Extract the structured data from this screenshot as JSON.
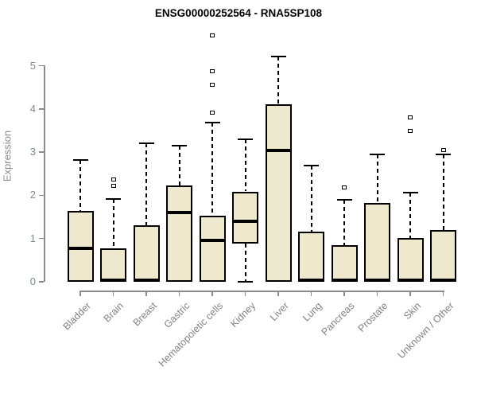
{
  "colors": {
    "box_fill": "#EEE8CD",
    "box_border": "#000000",
    "median": "#000000",
    "axis": "#8a8a8a",
    "tick_label": "#7f8b93",
    "category_label": "#828282",
    "title": "#000000",
    "background": "#ffffff"
  },
  "chart_data": {
    "type": "boxplot",
    "title": "ENSG00000252564 - RNA5SP108",
    "xlabel": "",
    "ylabel": "Expression",
    "ylim": [
      0,
      5
    ],
    "yticks": [
      0,
      1,
      2,
      3,
      4,
      5
    ],
    "grid": false,
    "legend": "none",
    "categories": [
      "Bladder",
      "Brain",
      "Breast",
      "Gastric",
      "Hematopoietic cells",
      "Kidney",
      "Liver",
      "Lung",
      "Pancreas",
      "Prostate",
      "Skin",
      "Unknown / Other"
    ],
    "series": [
      {
        "category": "Bladder",
        "whisker_low": null,
        "q1": 0,
        "median": 0.78,
        "q3": 1.63,
        "whisker_high": 2.82,
        "outliers": []
      },
      {
        "category": "Brain",
        "whisker_low": null,
        "q1": 0,
        "median": 0.03,
        "q3": 0.78,
        "whisker_high": 1.92,
        "outliers": [
          2.22,
          2.36
        ]
      },
      {
        "category": "Breast",
        "whisker_low": null,
        "q1": 0,
        "median": 0.03,
        "q3": 1.31,
        "whisker_high": 3.21,
        "outliers": []
      },
      {
        "category": "Gastric",
        "whisker_low": null,
        "q1": 0,
        "median": 1.6,
        "q3": 2.22,
        "whisker_high": 3.15,
        "outliers": []
      },
      {
        "category": "Hematopoietic cells",
        "whisker_low": null,
        "q1": 0,
        "median": 0.96,
        "q3": 1.53,
        "whisker_high": 3.68,
        "outliers": [
          3.92,
          4.56,
          4.87,
          5.7
        ]
      },
      {
        "category": "Kidney",
        "whisker_low": 0,
        "q1": 0.88,
        "median": 1.4,
        "q3": 2.09,
        "whisker_high": 3.3,
        "outliers": []
      },
      {
        "category": "Liver",
        "whisker_low": null,
        "q1": 0,
        "median": 3.03,
        "q3": 4.1,
        "whisker_high": 5.21,
        "outliers": []
      },
      {
        "category": "Lung",
        "whisker_low": null,
        "q1": 0,
        "median": 0.03,
        "q3": 1.16,
        "whisker_high": 2.68,
        "outliers": []
      },
      {
        "category": "Pancreas",
        "whisker_low": null,
        "q1": 0,
        "median": 0.04,
        "q3": 0.85,
        "whisker_high": 1.89,
        "outliers": [
          2.18
        ]
      },
      {
        "category": "Prostate",
        "whisker_low": null,
        "q1": 0,
        "median": 0.03,
        "q3": 1.83,
        "whisker_high": 2.95,
        "outliers": []
      },
      {
        "category": "Skin",
        "whisker_low": null,
        "q1": 0,
        "median": 0.03,
        "q3": 1.02,
        "whisker_high": 2.06,
        "outliers": [
          3.49,
          3.8
        ]
      },
      {
        "category": "Unknown / Other",
        "whisker_low": null,
        "q1": 0,
        "median": 0.03,
        "q3": 1.19,
        "whisker_high": 2.94,
        "outliers": [
          3.05
        ]
      }
    ]
  }
}
